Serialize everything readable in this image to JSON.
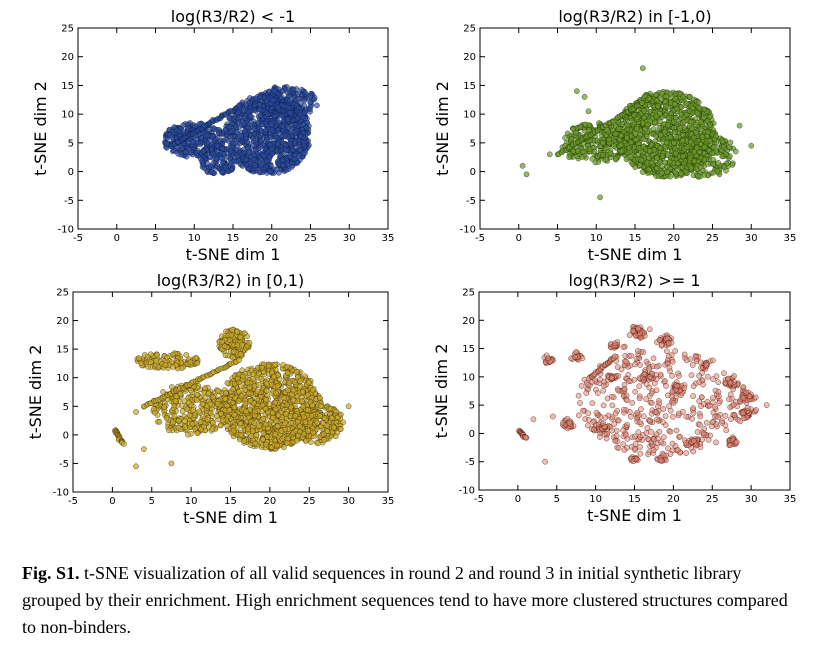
{
  "chart_data": [
    {
      "type": "scatter",
      "title": "log(R3/R2) < -1",
      "xlabel": "t-SNE dim 1",
      "ylabel": "t-SNE dim 2",
      "xlim": [
        -5,
        35
      ],
      "ylim": [
        -10,
        25
      ],
      "xticks": [
        -5,
        0,
        5,
        10,
        15,
        20,
        25,
        30,
        35
      ],
      "yticks": [
        -10,
        -5,
        0,
        5,
        10,
        15,
        20,
        25
      ],
      "fill": "#2a4a9e",
      "edge": "#0d1b40",
      "alpha": 0.65,
      "grid": false,
      "clusters": [
        {
          "cx": 19.5,
          "cy": 6.5,
          "rx": 5.5,
          "ry": 7.0,
          "n": 900
        },
        {
          "cx": 10.0,
          "cy": 5.5,
          "rx": 4.0,
          "ry": 3.0,
          "n": 260
        },
        {
          "cx": 13.0,
          "cy": 2.0,
          "rx": 2.5,
          "ry": 2.5,
          "n": 120
        },
        {
          "cx": 22.0,
          "cy": 12.0,
          "rx": 4.0,
          "ry": 3.0,
          "n": 200
        }
      ],
      "line": {
        "from": [
          7.0,
          4.5
        ],
        "to": [
          16.0,
          11.5
        ],
        "n": 60
      }
    },
    {
      "type": "scatter",
      "title": "log(R3/R2) in [-1,0)",
      "xlabel": "t-SNE dim 1",
      "ylabel": "t-SNE dim 2",
      "xlim": [
        -5,
        35
      ],
      "ylim": [
        -10,
        25
      ],
      "xticks": [
        -5,
        0,
        5,
        10,
        15,
        20,
        25,
        30,
        35
      ],
      "yticks": [
        -10,
        -5,
        0,
        5,
        10,
        15,
        20,
        25
      ],
      "fill": "#6c9a2a",
      "edge": "#1e3308",
      "alpha": 0.7,
      "grid": false,
      "clusters": [
        {
          "cx": 19.0,
          "cy": 6.5,
          "rx": 6.5,
          "ry": 7.5,
          "n": 1000
        },
        {
          "cx": 10.0,
          "cy": 5.0,
          "rx": 4.5,
          "ry": 3.5,
          "n": 260
        },
        {
          "cx": 24.0,
          "cy": 3.0,
          "rx": 4.0,
          "ry": 4.0,
          "n": 200
        }
      ],
      "line": {
        "from": [
          5.0,
          3.0
        ],
        "to": [
          16.0,
          12.0
        ],
        "n": 60
      },
      "outliers": [
        [
          0.5,
          1.0
        ],
        [
          1.0,
          -0.5
        ],
        [
          7.5,
          14.0
        ],
        [
          8.5,
          13.0
        ],
        [
          9.0,
          10.5
        ],
        [
          10.5,
          -4.5
        ],
        [
          28.5,
          8.0
        ],
        [
          28.0,
          3.5
        ],
        [
          16.0,
          18.0
        ],
        [
          4.0,
          3.0
        ],
        [
          30.0,
          4.5
        ],
        [
          6.5,
          2.5
        ]
      ]
    },
    {
      "type": "scatter",
      "title": "log(R3/R2) in [0,1)",
      "xlabel": "t-SNE dim 1",
      "ylabel": "t-SNE dim 2",
      "xlim": [
        -5,
        35
      ],
      "ylim": [
        -10,
        25
      ],
      "xticks": [
        -5,
        0,
        5,
        10,
        15,
        20,
        25,
        30,
        35
      ],
      "yticks": [
        -10,
        -5,
        0,
        5,
        10,
        15,
        20,
        25
      ],
      "fill": "#c9a82a",
      "edge": "#3d3108",
      "alpha": 0.7,
      "grid": false,
      "clusters": [
        {
          "cx": 20.0,
          "cy": 5.0,
          "rx": 6.5,
          "ry": 7.5,
          "n": 950
        },
        {
          "cx": 10.0,
          "cy": 4.5,
          "rx": 5.0,
          "ry": 4.5,
          "n": 280
        },
        {
          "cx": 15.5,
          "cy": 16.0,
          "rx": 2.0,
          "ry": 2.5,
          "n": 120
        },
        {
          "cx": 7.0,
          "cy": 13.0,
          "rx": 4.0,
          "ry": 1.5,
          "n": 100
        },
        {
          "cx": 26.0,
          "cy": 2.0,
          "rx": 3.5,
          "ry": 3.5,
          "n": 180
        }
      ],
      "line": {
        "from": [
          4.0,
          5.0
        ],
        "to": [
          16.0,
          13.0
        ],
        "n": 60
      },
      "small_line": {
        "from": [
          0.3,
          0.8
        ],
        "to": [
          1.3,
          -1.5
        ],
        "n": 25
      },
      "outliers": [
        [
          3.0,
          -5.5
        ],
        [
          7.5,
          -5.0
        ],
        [
          4.0,
          -2.5
        ],
        [
          3.0,
          4.0
        ],
        [
          30.0,
          5.0
        ],
        [
          29.0,
          1.0
        ]
      ]
    },
    {
      "type": "scatter",
      "title": "log(R3/R2) >= 1",
      "xlabel": "t-SNE dim 1",
      "ylabel": "t-SNE dim 2",
      "xlim": [
        -5,
        35
      ],
      "ylim": [
        -10,
        25
      ],
      "xticks": [
        -5,
        0,
        5,
        10,
        15,
        20,
        25,
        30,
        35
      ],
      "yticks": [
        -10,
        -5,
        0,
        5,
        10,
        15,
        20,
        25
      ],
      "fill": "#e08a7a",
      "edge": "#5a1a0e",
      "alpha": 0.55,
      "grid": false,
      "clusters": [
        {
          "cx": 18.5,
          "cy": 5.5,
          "rx": 11.0,
          "ry": 9.5,
          "n": 420
        }
      ],
      "dense_clusters": [
        {
          "cx": 15.5,
          "cy": 18.0,
          "r": 1.0,
          "n": 45
        },
        {
          "cx": 19.0,
          "cy": 16.5,
          "r": 0.9,
          "n": 30
        },
        {
          "cx": 4.0,
          "cy": 13.0,
          "r": 0.7,
          "n": 20
        },
        {
          "cx": 7.5,
          "cy": 13.5,
          "r": 0.7,
          "n": 20
        },
        {
          "cx": 12.5,
          "cy": 15.5,
          "r": 0.7,
          "n": 20
        },
        {
          "cx": 27.5,
          "cy": 9.0,
          "r": 0.8,
          "n": 25
        },
        {
          "cx": 29.5,
          "cy": 6.5,
          "r": 0.9,
          "n": 30
        },
        {
          "cx": 29.5,
          "cy": 3.5,
          "r": 0.9,
          "n": 30
        },
        {
          "cx": 27.5,
          "cy": -1.5,
          "r": 0.8,
          "n": 25
        },
        {
          "cx": 22.5,
          "cy": -1.5,
          "r": 0.8,
          "n": 25
        },
        {
          "cx": 6.5,
          "cy": 1.5,
          "r": 0.8,
          "n": 25
        },
        {
          "cx": 11.0,
          "cy": 1.0,
          "r": 0.7,
          "n": 20
        },
        {
          "cx": 15.0,
          "cy": -4.5,
          "r": 0.6,
          "n": 15
        },
        {
          "cx": 18.5,
          "cy": -4.5,
          "r": 0.6,
          "n": 15
        },
        {
          "cx": 20.5,
          "cy": 8.0,
          "r": 0.9,
          "n": 25
        },
        {
          "cx": 16.5,
          "cy": 10.0,
          "r": 0.8,
          "n": 20
        },
        {
          "cx": 12.0,
          "cy": 10.0,
          "r": 0.6,
          "n": 15
        },
        {
          "cx": 24.0,
          "cy": 12.0,
          "r": 0.6,
          "n": 15
        }
      ],
      "line": {
        "from": [
          9.5,
          10.0
        ],
        "to": [
          12.5,
          13.5
        ],
        "n": 25
      },
      "small_line": {
        "from": [
          0.2,
          0.5
        ],
        "to": [
          1.0,
          -0.8
        ],
        "n": 20
      },
      "outliers": [
        [
          3.5,
          -5.0
        ],
        [
          2.0,
          2.5
        ],
        [
          32.0,
          5.0
        ],
        [
          4.5,
          3.0
        ]
      ]
    }
  ],
  "caption": {
    "label": "Fig. S1.",
    "text": " t-SNE visualization of all valid sequences in round 2 and round 3 in initial synthetic library grouped by their enrichment.  High enrichment sequences tend to have more clustered structures compared to non-binders."
  }
}
